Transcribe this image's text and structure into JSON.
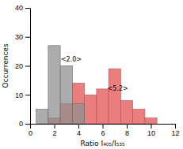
{
  "chart_data": {
    "type": "histogram",
    "xlabel": "Ratio I₄₀₅/I₅₃₅",
    "ylabel": "Occurrences",
    "series": [
      {
        "color": "#909090",
        "bins": [
          0.5,
          1.5,
          2.5,
          3.5,
          4.5
        ],
        "values": [
          5,
          27,
          20,
          7
        ]
      },
      {
        "color": "#e87070",
        "bins": [
          1.5,
          2.5,
          3.5,
          4.5,
          5.5,
          6.5,
          7.5,
          8.5,
          9.5,
          10.5
        ],
        "values": [
          2,
          7,
          14,
          10,
          12,
          19,
          8,
          5,
          2
        ]
      }
    ],
    "annotations": [
      {
        "text": "<2.0>",
        "x": 2.55,
        "y": 21.5
      },
      {
        "text": "<5.2>",
        "x": 6.4,
        "y": 11.5
      }
    ],
    "xlim": [
      0,
      12
    ],
    "ylim": [
      0,
      40
    ],
    "xticks": [
      0,
      2,
      4,
      6,
      8,
      10,
      12
    ],
    "yticks": [
      0,
      10,
      20,
      30,
      40
    ]
  }
}
